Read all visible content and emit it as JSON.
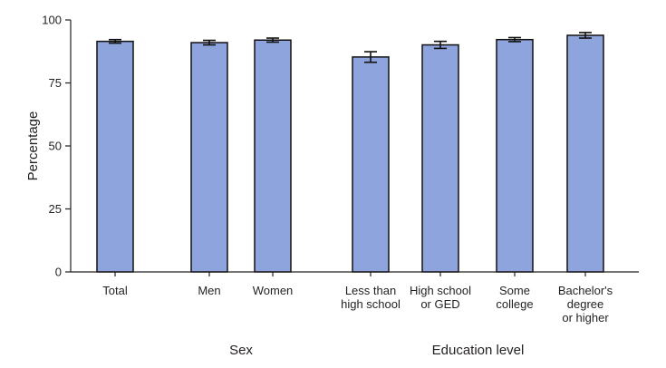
{
  "chart_data": {
    "type": "bar",
    "ylabel": "Percentage",
    "ylim": [
      0,
      100
    ],
    "yticks": [
      0,
      25,
      50,
      75,
      100
    ],
    "grid": false,
    "colors": {
      "bar_fill": "#8ea4dd",
      "bar_stroke": "#111111",
      "axis": "#231f20",
      "error_bar": "#111111"
    },
    "categories": [
      {
        "label_lines": [
          "Total"
        ],
        "value": 91.5,
        "ci": [
          90.8,
          92.2
        ]
      },
      {
        "label_lines": [
          "Men"
        ],
        "value": 91.0,
        "ci": [
          90.1,
          91.9
        ]
      },
      {
        "label_lines": [
          "Women"
        ],
        "value": 92.0,
        "ci": [
          91.2,
          92.8
        ]
      },
      {
        "label_lines": [
          "Less than",
          "high school"
        ],
        "value": 85.3,
        "ci": [
          83.2,
          87.4
        ]
      },
      {
        "label_lines": [
          "High school",
          "or GED"
        ],
        "value": 90.1,
        "ci": [
          88.7,
          91.5
        ]
      },
      {
        "label_lines": [
          "Some",
          "college"
        ],
        "value": 92.2,
        "ci": [
          91.4,
          93.0
        ]
      },
      {
        "label_lines": [
          "Bachelor's",
          "degree",
          "or higher"
        ],
        "value": 93.9,
        "ci": [
          92.8,
          95.0
        ]
      }
    ],
    "groups": [
      {
        "label": "Sex",
        "members": [
          1,
          2
        ]
      },
      {
        "label": "Education level",
        "members": [
          3,
          4,
          5,
          6
        ]
      }
    ]
  }
}
